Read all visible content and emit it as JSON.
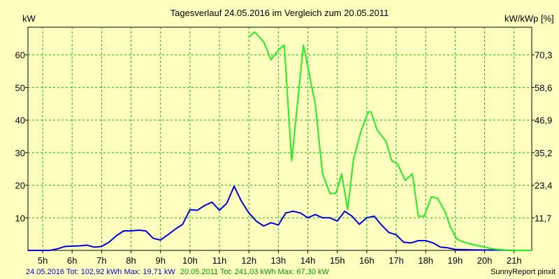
{
  "colors": {
    "background": "#ffffc0",
    "grid": "#00c000",
    "series1": "#0000dd",
    "series2": "#22ee22",
    "footer_series1": "#0000cc",
    "footer_series2": "#009900"
  },
  "chart_data": {
    "type": "line",
    "title": "Tagesverlauf 24.05.2016 im Vergleich zum 20.05.2011",
    "ylabel_left": "kW",
    "ylabel_right": "kW/kWp [%]",
    "xlim": [
      4.5,
      21.6
    ],
    "ylim": [
      0,
      68.5
    ],
    "grid": true,
    "x_ticks": [
      5,
      6,
      7,
      8,
      9,
      10,
      11,
      12,
      13,
      14,
      15,
      16,
      17,
      18,
      19,
      20,
      21
    ],
    "x_tick_labels": [
      "5h",
      "6h",
      "7h",
      "8h",
      "9h",
      "10h",
      "11h",
      "12h",
      "13h",
      "14h",
      "15h",
      "16h",
      "17h",
      "18h",
      "19h",
      "20h",
      "21h"
    ],
    "y_ticks": [
      10,
      20,
      30,
      40,
      50,
      60
    ],
    "y_tick_labels": [
      "10",
      "20",
      "30",
      "40",
      "50",
      "60"
    ],
    "y2_tick_labels": [
      "11,7",
      "23,4",
      "35,2",
      "46,9",
      "58,6",
      "70,3"
    ],
    "series": [
      {
        "name": "24.05.2016",
        "x": [
          4.5,
          5.25,
          5.5,
          5.75,
          6.0,
          6.25,
          6.5,
          6.75,
          7.0,
          7.25,
          7.5,
          7.75,
          8.0,
          8.25,
          8.5,
          8.75,
          9.0,
          9.25,
          9.5,
          9.75,
          10.0,
          10.25,
          10.5,
          10.75,
          11.0,
          11.25,
          11.5,
          11.75,
          12.0,
          12.25,
          12.5,
          12.75,
          13.0,
          13.25,
          13.5,
          13.75,
          14.0,
          14.25,
          14.5,
          14.75,
          15.0,
          15.25,
          15.5,
          15.75,
          16.0,
          16.25,
          16.5,
          16.75,
          17.0,
          17.25,
          17.5,
          17.75,
          18.0,
          18.25,
          18.5,
          18.75,
          19.0,
          19.5,
          20.0,
          20.5,
          21.0,
          21.6
        ],
        "y": [
          0,
          0,
          0.5,
          1.2,
          1.3,
          1.4,
          1.6,
          1.0,
          1.2,
          2.5,
          4.5,
          6.0,
          6.0,
          6.2,
          6.0,
          3.7,
          3.2,
          4.8,
          6.5,
          8.0,
          12.5,
          12.3,
          13.8,
          14.8,
          12.3,
          14.5,
          19.7,
          15.0,
          11.5,
          9.0,
          7.5,
          8.5,
          7.8,
          11.5,
          12.0,
          11.5,
          10.0,
          11.0,
          10.0,
          10.0,
          9.0,
          12.0,
          10.5,
          8.0,
          10.0,
          10.5,
          7.8,
          5.5,
          4.8,
          2.5,
          2.3,
          3.0,
          3.0,
          2.3,
          1.0,
          0.8,
          0.3,
          0.2,
          0.1,
          0.1,
          0,
          0
        ]
      },
      {
        "name": "20.05.2011",
        "x": [
          12.0,
          12.2,
          12.5,
          12.75,
          13.0,
          13.2,
          13.45,
          13.85,
          14.25,
          14.5,
          14.75,
          14.95,
          15.15,
          15.35,
          15.55,
          15.8,
          16.05,
          16.15,
          16.35,
          16.65,
          16.85,
          17.05,
          17.3,
          17.55,
          17.75,
          17.95,
          18.2,
          18.4,
          18.65,
          18.85,
          19.05,
          19.3,
          19.6,
          19.9,
          20.25,
          20.6,
          21.0,
          21.6
        ],
        "y": [
          65.5,
          67.0,
          64.0,
          58.5,
          61.5,
          63.0,
          27.5,
          63.0,
          45.0,
          23.5,
          17.5,
          17.5,
          23.5,
          12.5,
          28.0,
          36.5,
          42.5,
          42.5,
          37.0,
          33.5,
          27.5,
          26.5,
          21.5,
          23.5,
          10.5,
          10.5,
          16.5,
          16.0,
          12.0,
          7.0,
          3.5,
          2.5,
          1.8,
          1.2,
          0.5,
          0.2,
          0,
          0
        ]
      }
    ]
  },
  "footer": {
    "series1_text": "24.05.2016 Tot: 102,92 kWh Max: 19,71 kW",
    "series2_text": "20.05.2011 Tot: 241,03 kWh Max: 67,30 kW",
    "credit": "SunnyReport pinxit"
  }
}
